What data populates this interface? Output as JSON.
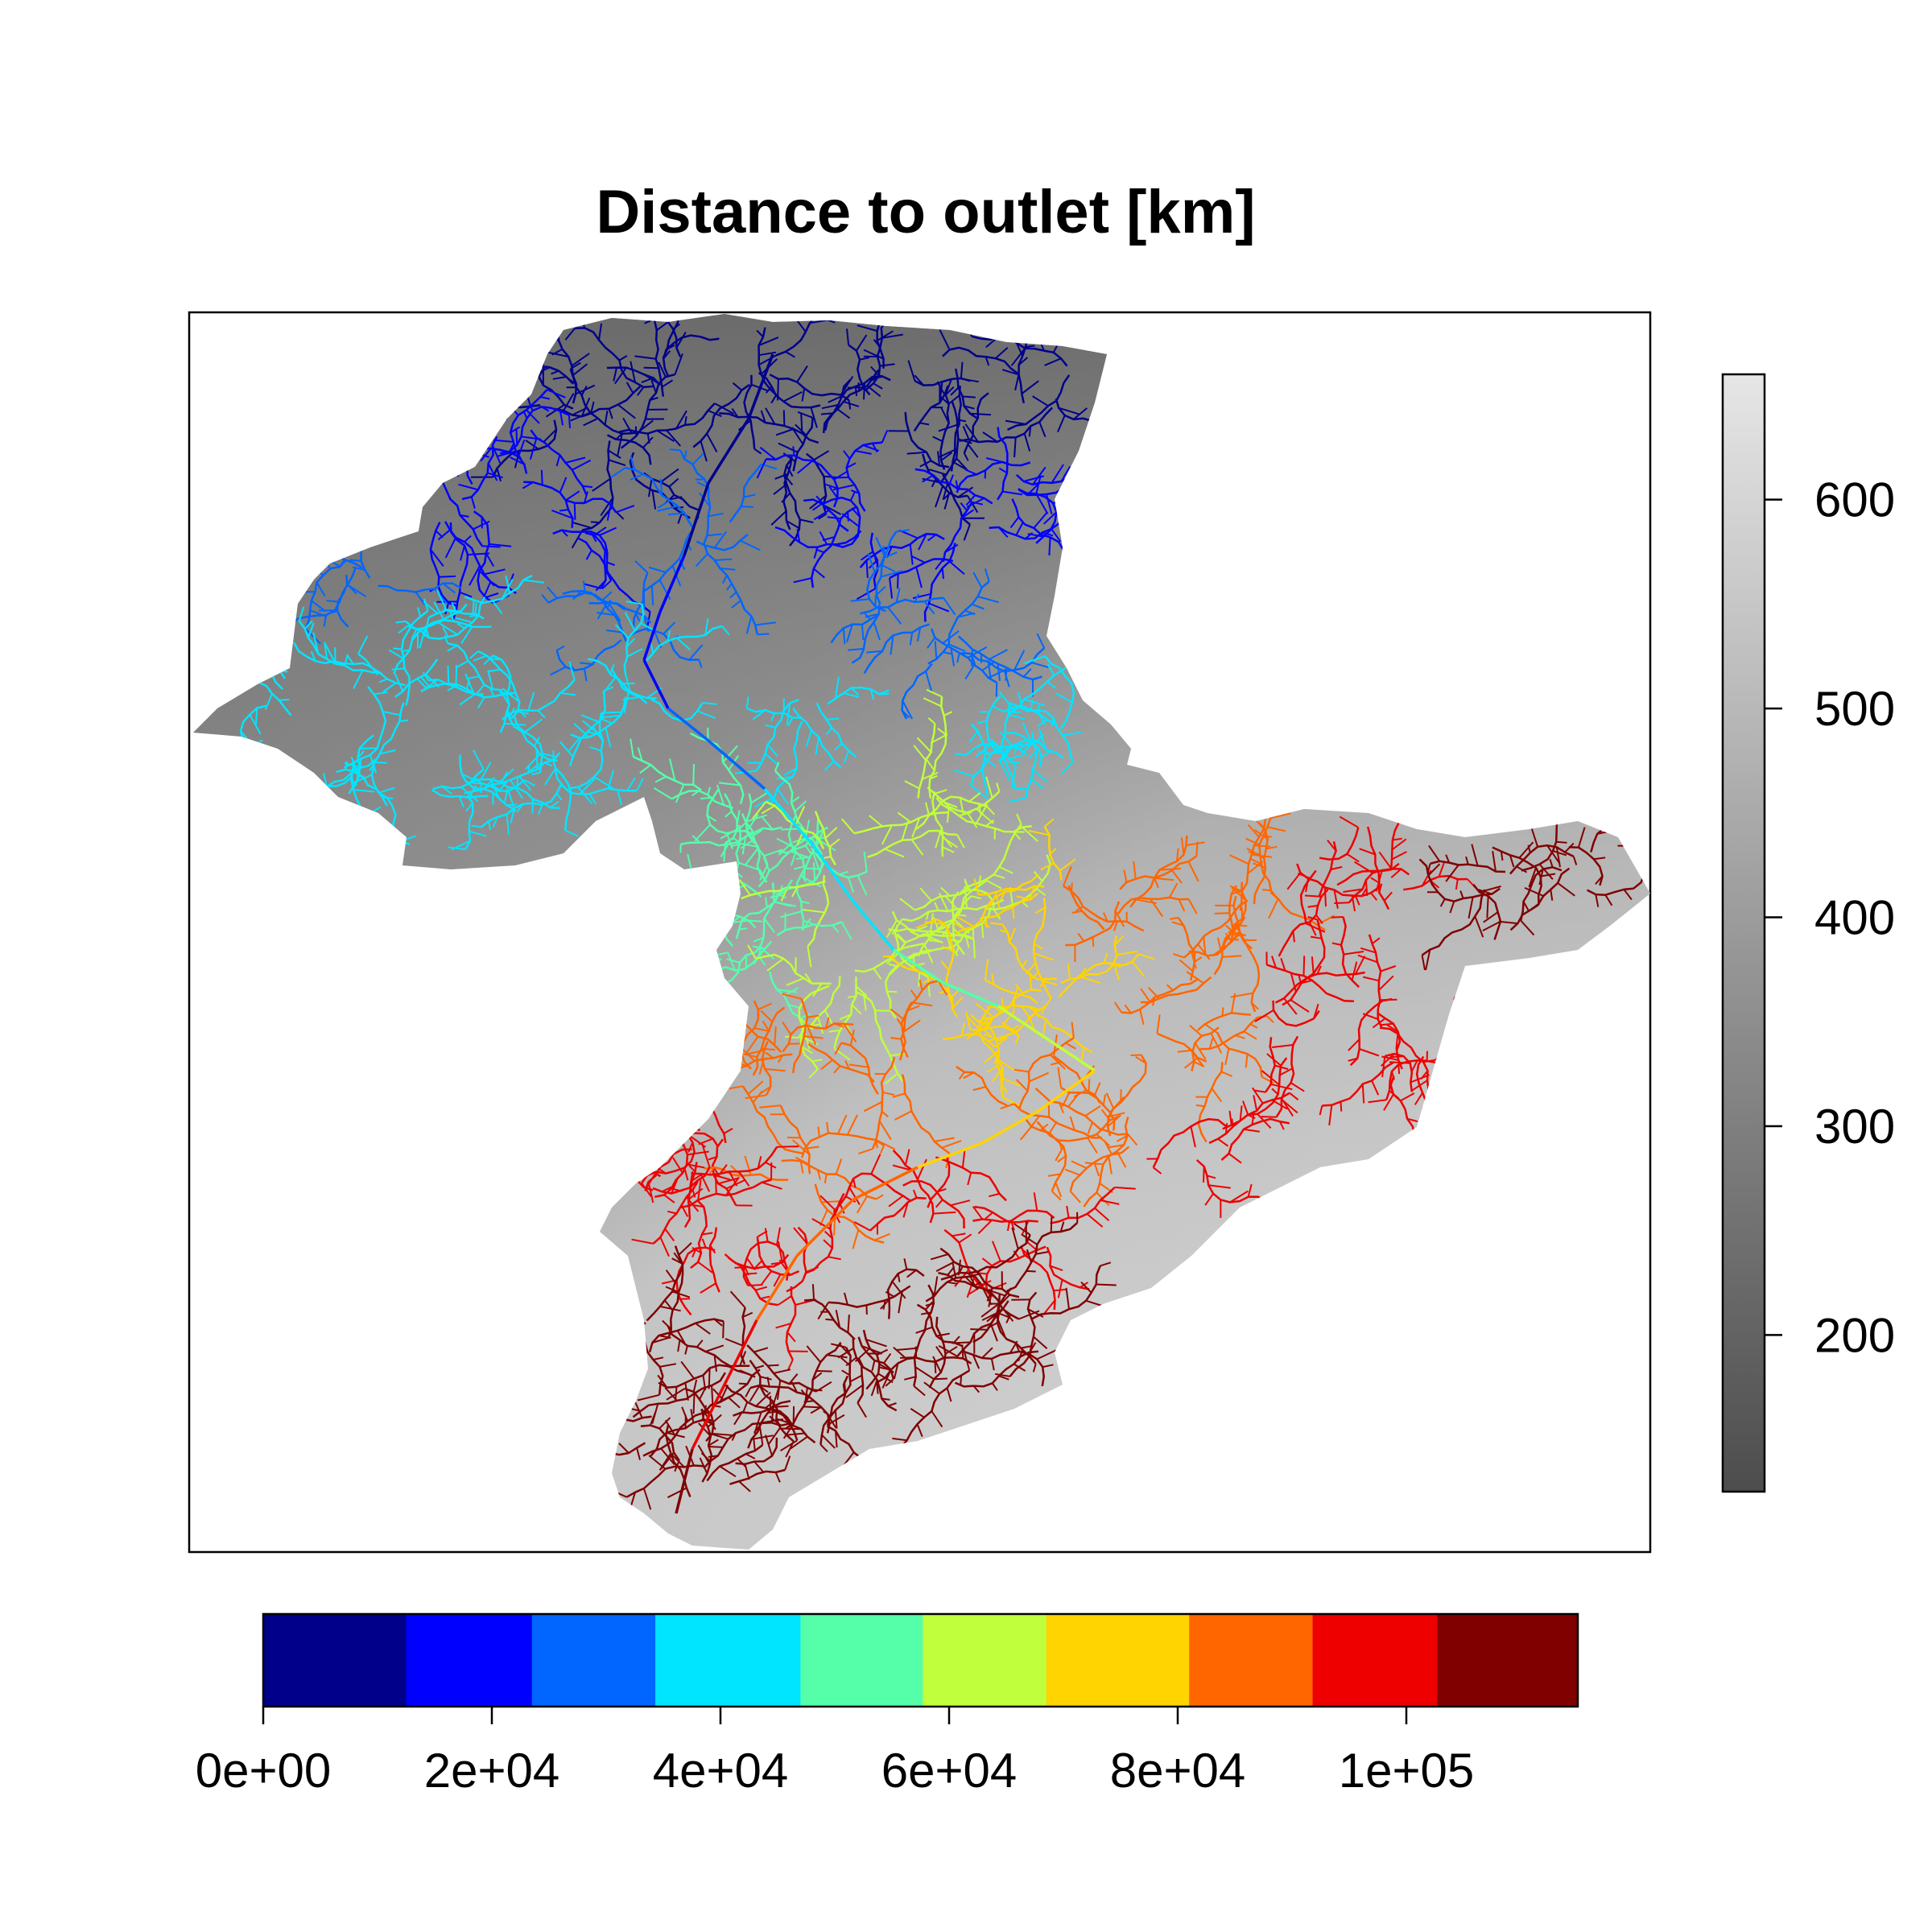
{
  "title": "Distance to outlet [km]",
  "elevation_legend": {
    "ticks": [
      {
        "value": 200,
        "label": "200"
      },
      {
        "value": 300,
        "label": "300"
      },
      {
        "value": 400,
        "label": "400"
      },
      {
        "value": 500,
        "label": "500"
      },
      {
        "value": 600,
        "label": "600"
      }
    ],
    "range": [
      125,
      660
    ],
    "colors": [
      "#4d4d4d",
      "#e6e6e6"
    ]
  },
  "distance_legend": {
    "ticks": [
      {
        "value": 0,
        "label": "0e+00"
      },
      {
        "value": 20000,
        "label": "2e+04"
      },
      {
        "value": 40000,
        "label": "4e+04"
      },
      {
        "value": 60000,
        "label": "6e+04"
      },
      {
        "value": 80000,
        "label": "8e+04"
      },
      {
        "value": 100000,
        "label": "1e+05"
      }
    ],
    "range": [
      0,
      115000
    ],
    "class_breaks": [
      0,
      12500,
      23500,
      34300,
      47000,
      57700,
      68500,
      81000,
      91800,
      102700,
      115000
    ],
    "class_colors": [
      "#00008b",
      "#0000ff",
      "#0066ff",
      "#00e5ff",
      "#55ffaa",
      "#c0ff3b",
      "#ffd400",
      "#ff6600",
      "#ee0000",
      "#800000"
    ]
  },
  "streams_legend_colors": {
    "dark_blue": "#00008b",
    "blue": "#0000ff",
    "mid_blue": "#0066ff",
    "cyan": "#00e5ff",
    "aquamarine": "#55ffaa",
    "lime": "#c0ff3b",
    "gold": "#ffd400",
    "orange": "#ff6600",
    "red": "#ee0000",
    "dark_red": "#800000"
  }
}
